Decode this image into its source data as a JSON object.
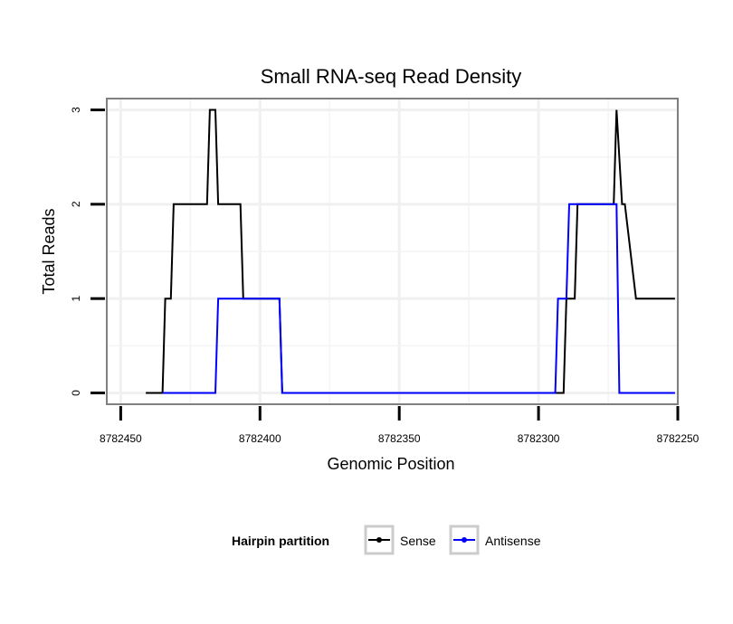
{
  "chart_data": {
    "type": "line",
    "title": "Small RNA-seq Read Density",
    "xlabel": "Genomic Position",
    "ylabel": "Total Reads",
    "xlim": [
      8782455,
      8782250
    ],
    "ylim": [
      -0.12,
      3.12
    ],
    "x_reversed": true,
    "x_ticks": [
      8782450,
      8782400,
      8782350,
      8782300,
      8782250
    ],
    "x_tick_labels": [
      "8782450",
      "8782400",
      "8782350",
      "8782300",
      "8782250"
    ],
    "y_ticks": [
      0,
      1,
      2,
      3
    ],
    "y_tick_labels": [
      "0",
      "1",
      "2",
      "3"
    ],
    "grid": true,
    "legend": {
      "title": "Hairpin partition",
      "position": "bottom"
    },
    "series": [
      {
        "name": "Sense",
        "color": "#000000",
        "x": [
          8782441,
          8782435,
          8782434,
          8782432,
          8782431,
          8782419,
          8782418,
          8782416,
          8782415,
          8782407,
          8782406,
          8782393,
          8782392,
          8782291,
          8782290,
          8782287,
          8782286,
          8782282,
          8782281,
          8782273,
          8782272,
          8782270,
          8782269,
          8782265,
          8782264,
          8782251
        ],
        "y": [
          0,
          0,
          1,
          1,
          2,
          2,
          3,
          3,
          2,
          2,
          1,
          1,
          0,
          0,
          1,
          1,
          2,
          2,
          2,
          2,
          3,
          2,
          2,
          1,
          1,
          1
        ]
      },
      {
        "name": "Antisense",
        "color": "#0000ff",
        "x": [
          8782435,
          8782416,
          8782415,
          8782393,
          8782392,
          8782294,
          8782293,
          8782290,
          8782289,
          8782272,
          8782271,
          8782251
        ],
        "y": [
          0,
          0,
          1,
          1,
          0,
          0,
          1,
          1,
          2,
          2,
          0,
          0
        ]
      }
    ]
  }
}
